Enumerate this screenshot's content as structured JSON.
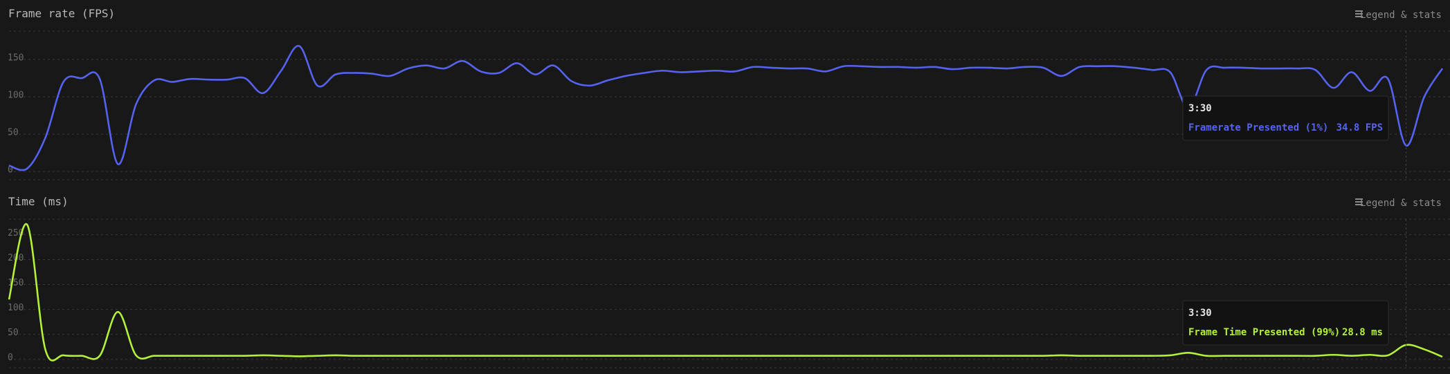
{
  "chart_data": [
    {
      "type": "line",
      "title": "Frame rate (FPS)",
      "legend_button": "Legend & stats",
      "ylim": [
        -11,
        188
      ],
      "yticks": [
        0,
        50,
        100,
        150
      ],
      "grid": true,
      "series": [
        {
          "name": "Framerate Presented (1%)",
          "color": "#5563f0",
          "values": [
            8,
            4,
            45,
            120,
            125,
            124,
            10,
            90,
            122,
            120,
            124,
            123,
            123,
            125,
            105,
            135,
            168,
            115,
            130,
            132,
            131,
            128,
            138,
            142,
            138,
            148,
            134,
            132,
            145,
            130,
            142,
            121,
            115,
            122,
            128,
            132,
            135,
            133,
            134,
            135,
            134,
            140,
            139,
            138,
            138,
            134,
            141,
            141,
            140,
            140,
            139,
            140,
            137,
            139,
            139,
            138,
            140,
            139,
            128,
            140,
            141,
            141,
            139,
            136,
            133,
            85,
            136,
            139,
            139,
            138,
            138,
            138,
            136,
            112,
            133,
            108,
            124,
            34.8,
            100,
            138
          ]
        }
      ],
      "tooltip": {
        "title": "3:30",
        "value_label": "34.8 FPS"
      }
    },
    {
      "type": "line",
      "title": "Time (ms)",
      "legend_button": "Legend & stats",
      "ylim": [
        -17,
        281
      ],
      "yticks": [
        0,
        50,
        100,
        150,
        200,
        250
      ],
      "grid": true,
      "series": [
        {
          "name": "Frame Time Presented (99%)",
          "color": "#b4f23a",
          "values": [
            120,
            270,
            20,
            8,
            7,
            7,
            95,
            8,
            7,
            7,
            7,
            7,
            7,
            7,
            8,
            7,
            6,
            7,
            8,
            7,
            7,
            7,
            7,
            7,
            7,
            7,
            7,
            7,
            7,
            7,
            7,
            7,
            7,
            7,
            7,
            7,
            7,
            7,
            7,
            7,
            7,
            7,
            7,
            7,
            7,
            7,
            7,
            7,
            7,
            7,
            7,
            7,
            7,
            7,
            7,
            7,
            7,
            7,
            8,
            7,
            7,
            7,
            7,
            7,
            8,
            13,
            7,
            7,
            7,
            7,
            7,
            7,
            7,
            9,
            7,
            9,
            8,
            28.8,
            20,
            5
          ]
        }
      ],
      "tooltip": {
        "title": "3:30",
        "value_label": "28.8 ms"
      }
    }
  ]
}
